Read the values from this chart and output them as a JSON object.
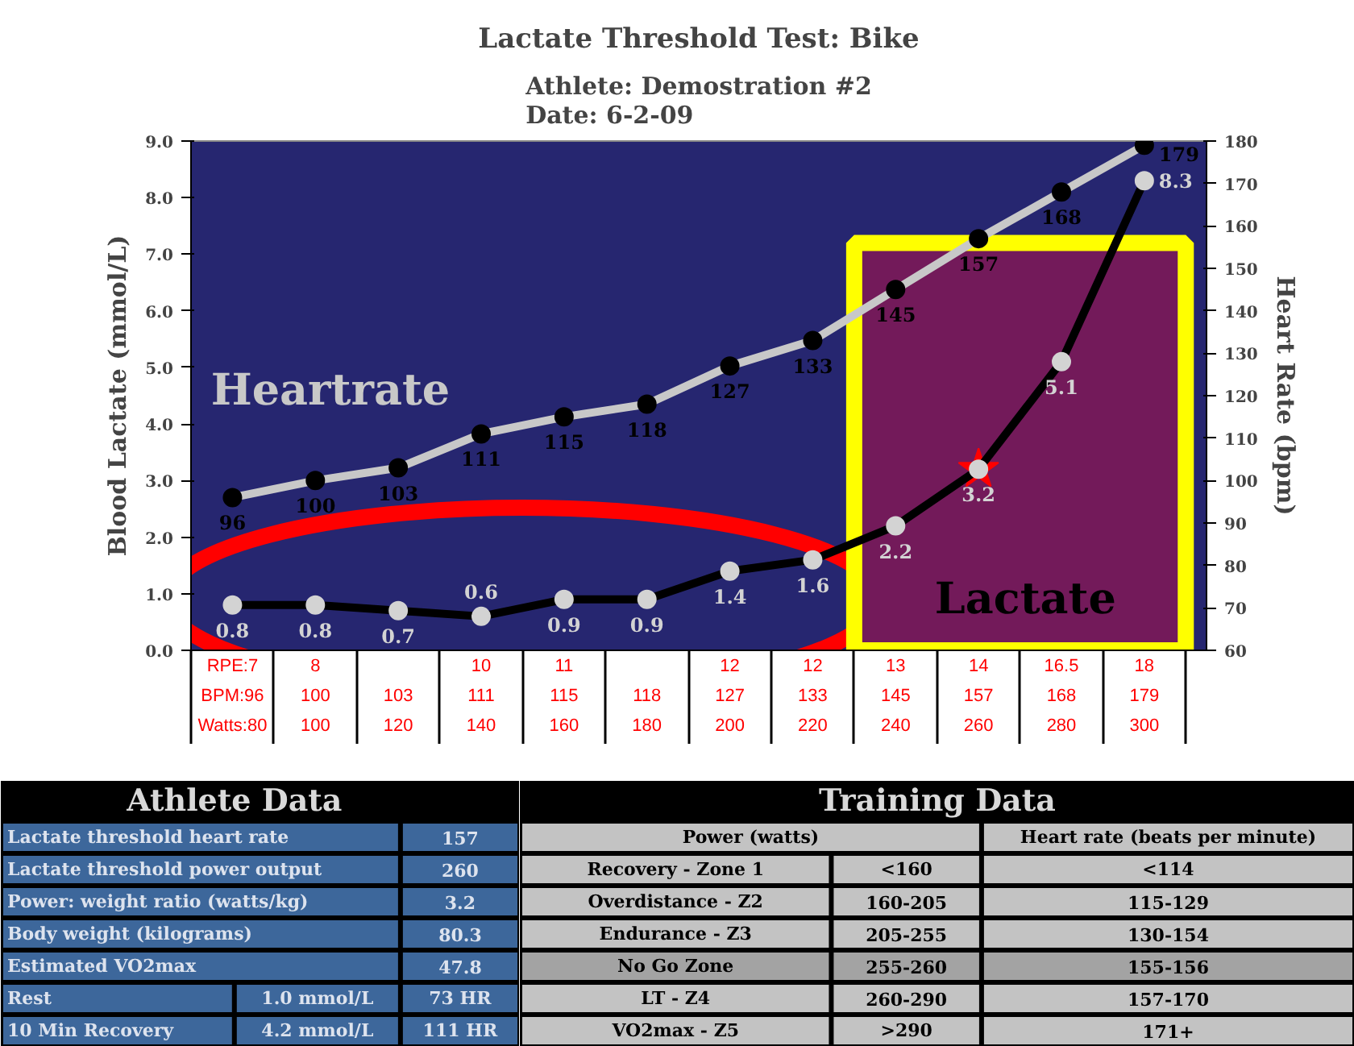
{
  "chart_data": [
    {
      "type": "line",
      "title": "Lactate Threshold Test: Bike",
      "subtitle": "Athlete: Demostration #2\nDate: 6-2-09",
      "ylabel": "Blood Lactate (mmol/L)",
      "y2label": "Heart Rate (bpm)",
      "categories": [
        "RPE:7\nBPM:96\nWatts:80",
        "8\n100\n100",
        "\n103\n120",
        "10\n111\n140",
        "11\n115\n160",
        "\n118\n180",
        "12\n127\n200",
        "12\n133\n220",
        "13\n145\n240",
        "14\n157\n260",
        "16.5\n168\n280",
        "18\n179\n300"
      ],
      "series": [
        {
          "type": "scatter",
          "axis": "y",
          "marker": "star",
          "color": "#ff0000",
          "x": [
            "14\n157\n260"
          ],
          "values": [
            3.2
          ]
        },
        {
          "name": "Heartrate",
          "type": "line",
          "axis": "y2",
          "color": "#c8c8c8",
          "colors": [
            "#000000",
            "#000000",
            "#000000",
            "#000000",
            "#000000",
            "#000000",
            "#000000",
            "#000000",
            "#000000",
            "#000000",
            "#000000",
            "#000000"
          ],
          "values": [
            96,
            100,
            103,
            111,
            115,
            118,
            127,
            133,
            145,
            157,
            168,
            179
          ],
          "value_labels": [
            "96",
            "100",
            "103",
            "111",
            "115",
            "118",
            "127",
            "133",
            "145",
            "157",
            "168",
            "179"
          ]
        },
        {
          "name": "Lactate",
          "type": "line",
          "axis": "y",
          "color": "#000000",
          "colors": [
            "#d3d3d3",
            "#d3d3d3",
            "#d3d3d3",
            "#d3d3d3",
            "#d3d3d3",
            "#d3d3d3",
            "#d3d3d3",
            "#d3d3d3",
            "#d3d3d3",
            "#d3d3d3",
            "#d3d3d3",
            "#d3d3d3"
          ],
          "values": [
            0.8,
            0.8,
            0.7,
            0.6,
            0.9,
            0.9,
            1.4,
            1.6,
            2.2,
            3.2,
            5.1,
            8.3
          ],
          "value_labels": [
            "0.8",
            "0.8",
            "0.7",
            "0.6",
            "0.9",
            "0.9",
            "1.4",
            "1.6",
            "2.2",
            "3.2",
            "5.1",
            "8.3"
          ]
        }
      ],
      "ylim": [
        0,
        9
      ],
      "yticks": [
        {
          "value": 0,
          "label": "0.0"
        },
        {
          "value": 1,
          "label": "1.0"
        },
        {
          "value": 2,
          "label": "2.0"
        },
        {
          "value": 3,
          "label": "3.0"
        },
        {
          "value": 4,
          "label": "4.0"
        },
        {
          "value": 5,
          "label": "5.0"
        },
        {
          "value": 6,
          "label": "6.0"
        },
        {
          "value": 7,
          "label": "7.0"
        },
        {
          "value": 8,
          "label": "8.0"
        },
        {
          "value": 9,
          "label": "9.0"
        }
      ],
      "y2lim": [
        60,
        180
      ],
      "y2ticks": [
        60,
        70,
        80,
        90,
        100,
        110,
        120,
        130,
        140,
        150,
        160,
        170,
        180
      ],
      "bands": [
        {
          "axis": "x",
          "from": "13\n145\n240",
          "to": "18\n179\n300",
          "color": "#731a5a"
        }
      ],
      "marker": "circle",
      "line_style": "solid"
    },
    {
      "type": "other",
      "title": "Athlete Data",
      "y_categories": [
        "Lactate threshold heart rate",
        "Lactate threshold power output",
        "Power: weight ratio (watts/kg)",
        "Body weight (kilograms)",
        "Estimated VO2max",
        "Rest",
        "10 Min Recovery"
      ],
      "cell_labels": [
        [
          null,
          "157"
        ],
        [
          null,
          "260"
        ],
        [
          null,
          "3.2"
        ],
        [
          null,
          "80.3"
        ],
        [
          null,
          "47.8"
        ],
        [
          "1.0 mmol/L",
          "73 HR"
        ],
        [
          "4.2 mmol/L",
          "111 HR"
        ]
      ],
      "colors": [
        "#3d679b",
        "#3d679b",
        "#3d679b",
        "#3d679b",
        "#3d679b",
        "#3d679b",
        "#3d679b"
      ]
    },
    {
      "type": "other",
      "title": "Training Data",
      "categories": [
        "Power (watts)",
        "Heart rate (beats per minute)"
      ],
      "y_categories": [
        "Recovery - Zone 1",
        "Overdistance - Z2",
        "Endurance - Z3",
        "No Go Zone",
        "LT - Z4",
        "VO2max - Z5"
      ],
      "cell_labels": [
        [
          "<160",
          "<114"
        ],
        [
          "160-205",
          "115-129"
        ],
        [
          "205-255",
          "130-154"
        ],
        [
          "255-260",
          "155-156"
        ],
        [
          "260-290",
          "157-170"
        ],
        [
          ">290",
          "171+"
        ]
      ],
      "colors": [
        "#c3c3c3",
        "#c3c3c3",
        "#c3c3c3",
        "#c3c3c3",
        "#a3a3a3",
        "#c3c3c3",
        "#c3c3c3"
      ]
    }
  ]
}
